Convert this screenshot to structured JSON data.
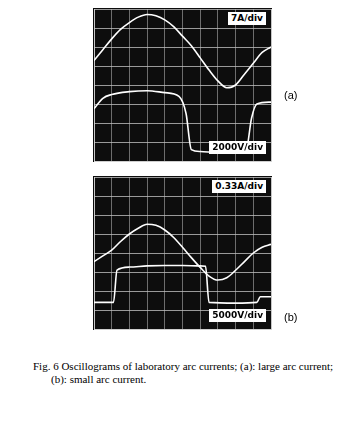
{
  "chart_data": [
    {
      "type": "line",
      "title": "(a)",
      "annotations": [
        "7A/div",
        "2000V/div"
      ],
      "grid": true,
      "tick_labels": false,
      "xlim": [
        0,
        10
      ],
      "xticks": [
        0,
        1,
        2,
        3,
        4,
        5,
        6,
        7,
        8,
        9,
        10
      ],
      "ylim": [
        -42,
        14
      ],
      "yticks": [
        -42,
        -35,
        -28,
        -21,
        -14,
        -7,
        0,
        7,
        14
      ],
      "y2lim": [
        -4000,
        12000
      ],
      "y2ticks": [
        -4000,
        -2000,
        0,
        2000,
        4000,
        6000,
        8000,
        10000,
        12000
      ],
      "series": [
        {
          "color": "#ffffff",
          "marker": "none",
          "line_style": "solid",
          "x": [
            0,
            0.5,
            1,
            1.5,
            2,
            2.5,
            3,
            3.5,
            4,
            4.5,
            5,
            5.5,
            6,
            6.5,
            7,
            7.5,
            8,
            8.5,
            9,
            9.5,
            10
          ],
          "values": [
            -5,
            -1,
            3,
            6.5,
            9,
            11,
            12,
            11.5,
            10,
            7.5,
            4,
            0.5,
            -4,
            -8.5,
            -12.5,
            -15,
            -14,
            -10,
            -6,
            -2,
            0
          ]
        },
        {
          "color": "#ffffff",
          "marker": "none",
          "line_style": "solid",
          "axis": "y2",
          "x": [
            0,
            0.5,
            1,
            2,
            3,
            4,
            4.8,
            5.2,
            5.5,
            6,
            7,
            8,
            8.6,
            8.9,
            9.2,
            10
          ],
          "values": [
            1500,
            2600,
            3000,
            3300,
            3400,
            3200,
            2800,
            1000,
            -2800,
            -3000,
            -3100,
            -3000,
            -2800,
            500,
            2000,
            2200
          ]
        }
      ]
    },
    {
      "type": "line",
      "title": "(b)",
      "annotations": [
        "0.33A/div",
        "5000V/div"
      ],
      "grid": true,
      "tick_labels": false,
      "xlim": [
        0,
        10
      ],
      "xticks": [
        0,
        1,
        2,
        3,
        4,
        5,
        6,
        7,
        8,
        9,
        10
      ],
      "ylim": [
        -1.32,
        1.32
      ],
      "yticks": [
        -1.32,
        -0.99,
        -0.66,
        -0.33,
        0,
        0.33,
        0.66,
        0.99,
        1.32
      ],
      "y2lim": [
        -10000,
        30000
      ],
      "y2ticks": [
        -10000,
        -5000,
        0,
        5000,
        10000,
        15000,
        20000,
        25000,
        30000
      ],
      "series": [
        {
          "color": "#ffffff",
          "marker": "none",
          "line_style": "solid",
          "x": [
            0,
            0.5,
            1,
            1.5,
            2,
            2.5,
            3,
            3.5,
            4,
            4.5,
            5,
            5.5,
            6,
            6.5,
            7,
            7.5,
            8,
            8.5,
            9,
            9.5,
            10
          ],
          "values": [
            -0.15,
            -0.05,
            0.05,
            0.2,
            0.33,
            0.43,
            0.5,
            0.48,
            0.4,
            0.27,
            0.1,
            -0.08,
            -0.25,
            -0.4,
            -0.47,
            -0.43,
            -0.3,
            -0.15,
            0,
            0.1,
            0.15
          ]
        },
        {
          "color": "#ffffff",
          "marker": "none",
          "line_style": "solid",
          "axis": "y2",
          "x": [
            0,
            1.1,
            1.3,
            2,
            3,
            4,
            5,
            6,
            6.3,
            6.5,
            8,
            9.2,
            9.4,
            10
          ],
          "values": [
            -3000,
            -3000,
            5500,
            6300,
            6600,
            6700,
            6700,
            6600,
            6500,
            -3000,
            -3200,
            -3000,
            -1500,
            -1500
          ]
        }
      ]
    }
  ],
  "caption": "Fig. 6 Oscillograms of laboratory arc currents; (a): large arc current; (b): small arc current."
}
